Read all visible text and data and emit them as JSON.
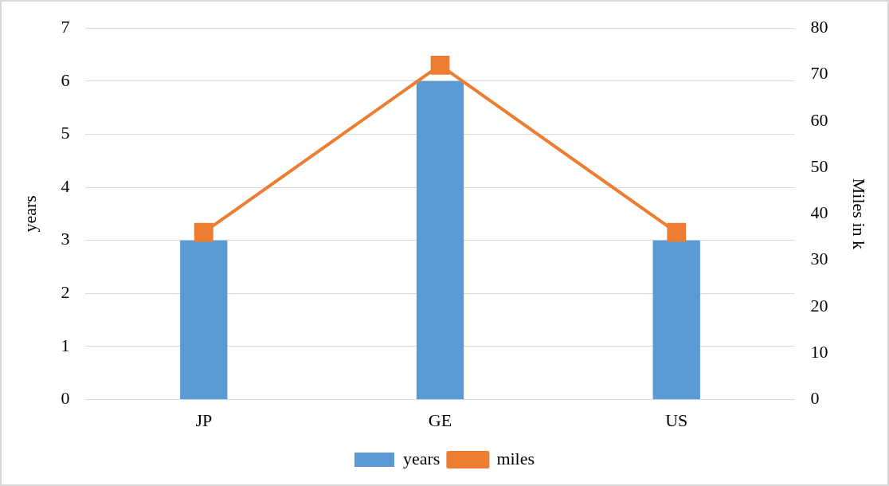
{
  "chart_data": {
    "type": "bar",
    "categories": [
      "JP",
      "GE",
      "US"
    ],
    "series": [
      {
        "name": "years",
        "color": "#5b9bd5",
        "values": [
          3,
          6,
          3
        ]
      },
      {
        "name": "miles",
        "type": "line",
        "axis": "y2",
        "color": "#ed7d31",
        "values": [
          36,
          72,
          36
        ]
      }
    ],
    "ylabel": "years",
    "y2label": "Miles in k",
    "ylim": [
      0,
      7
    ],
    "yticks": [
      0,
      1,
      2,
      3,
      4,
      5,
      6,
      7
    ],
    "y2lim": [
      0,
      80
    ],
    "y2ticks": [
      0,
      10,
      20,
      30,
      40,
      50,
      60,
      70,
      80
    ],
    "grid": "y",
    "legend": "bottom",
    "marker": "square",
    "line_style": "solid"
  }
}
